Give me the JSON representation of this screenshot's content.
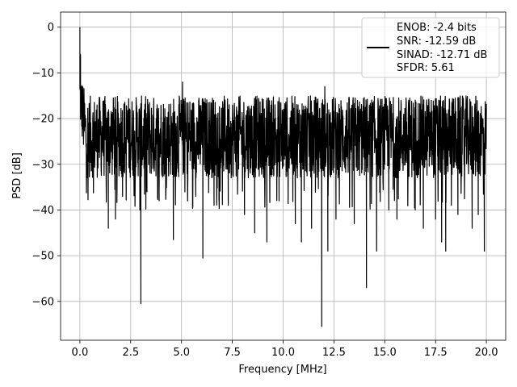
{
  "chart_data": {
    "type": "line",
    "title": "",
    "xlabel": "Frequency [MHz]",
    "ylabel": "PSD [dB]",
    "xlim": [
      -0.95,
      20.95
    ],
    "ylim": [
      -68.5,
      3.3
    ],
    "x_ticks": [
      0.0,
      2.5,
      5.0,
      7.5,
      10.0,
      12.5,
      15.0,
      17.5,
      20.0
    ],
    "x_tick_labels": [
      "0.0",
      "2.5",
      "5.0",
      "7.5",
      "10.0",
      "12.5",
      "15.0",
      "17.5",
      "20.0"
    ],
    "y_ticks": [
      0,
      -10,
      -20,
      -30,
      -40,
      -50,
      -60
    ],
    "y_tick_labels": [
      "0",
      "−10",
      "−20",
      "−30",
      "−40",
      "−50",
      "−60"
    ],
    "grid": true,
    "legend_position": "upper-right",
    "legend_entries": [
      "ENOB: -2.4 bits",
      "SNR: -12.59 dB",
      "SINAD: -12.71 dB",
      "SFDR: 5.61"
    ],
    "series_color": "#000000",
    "series": [
      {
        "x_start": 0.0,
        "x_end": 20.0,
        "noise_floor_db": -26,
        "band_min_db": -33,
        "band_max_db": -15,
        "peaks": [
          {
            "x": 0.0,
            "y": 0.0
          },
          {
            "x": 0.03,
            "y": -6
          },
          {
            "x": 0.08,
            "y": -14
          },
          {
            "x": 5.05,
            "y": -12
          },
          {
            "x": 12.05,
            "y": -13
          }
        ],
        "dips": [
          {
            "x": 0.35,
            "y": -33
          },
          {
            "x": 1.4,
            "y": -44
          },
          {
            "x": 1.75,
            "y": -42
          },
          {
            "x": 2.1,
            "y": -37
          },
          {
            "x": 2.95,
            "y": -40
          },
          {
            "x": 3.0,
            "y": -60.5
          },
          {
            "x": 3.3,
            "y": -36
          },
          {
            "x": 3.9,
            "y": -38
          },
          {
            "x": 4.6,
            "y": -46.5
          },
          {
            "x": 5.7,
            "y": -37
          },
          {
            "x": 6.05,
            "y": -50.5
          },
          {
            "x": 6.6,
            "y": -39
          },
          {
            "x": 7.3,
            "y": -39
          },
          {
            "x": 8.1,
            "y": -41
          },
          {
            "x": 8.6,
            "y": -45
          },
          {
            "x": 9.2,
            "y": -47
          },
          {
            "x": 9.8,
            "y": -38
          },
          {
            "x": 10.6,
            "y": -43
          },
          {
            "x": 10.9,
            "y": -47
          },
          {
            "x": 11.4,
            "y": -44
          },
          {
            "x": 11.9,
            "y": -65.5
          },
          {
            "x": 12.2,
            "y": -49
          },
          {
            "x": 12.6,
            "y": -42
          },
          {
            "x": 13.5,
            "y": -43
          },
          {
            "x": 14.1,
            "y": -57
          },
          {
            "x": 14.6,
            "y": -49
          },
          {
            "x": 15.2,
            "y": -40
          },
          {
            "x": 15.6,
            "y": -42
          },
          {
            "x": 16.5,
            "y": -40
          },
          {
            "x": 16.9,
            "y": -44
          },
          {
            "x": 17.5,
            "y": -42
          },
          {
            "x": 17.8,
            "y": -47
          },
          {
            "x": 18.0,
            "y": -49
          },
          {
            "x": 18.6,
            "y": -41
          },
          {
            "x": 19.3,
            "y": -44
          },
          {
            "x": 19.6,
            "y": -41
          },
          {
            "x": 19.9,
            "y": -49
          }
        ]
      }
    ]
  }
}
